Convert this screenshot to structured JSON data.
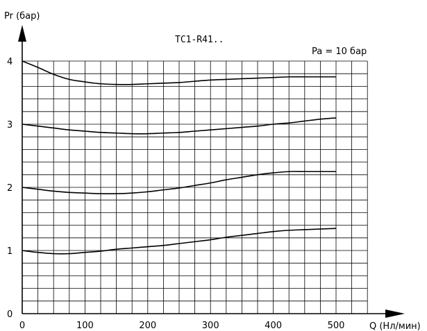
{
  "chart_data": {
    "type": "line",
    "title": "TC1-R41..",
    "annotation": "Pa = 10 бар",
    "xlabel": "Q (Нл/мин)",
    "ylabel": "Pr (бар)",
    "xlim": [
      0,
      500
    ],
    "ylim": [
      0,
      4
    ],
    "x_ticks": [
      0,
      100,
      200,
      300,
      400,
      500
    ],
    "y_ticks": [
      0,
      1,
      2,
      3,
      4
    ],
    "x_tick_labels": [
      "0",
      "100",
      "200",
      "300",
      "400",
      "500"
    ],
    "y_tick_labels": [
      "0",
      "1",
      "2",
      "3",
      "4"
    ],
    "grid": true,
    "x_grid_step": 25,
    "y_grid_step": 0.2,
    "x_grid_max": 550,
    "y_grid_max": 4.0,
    "series": [
      {
        "x": [
          0,
          25,
          50,
          75,
          100,
          125,
          150,
          175,
          200,
          225,
          250,
          275,
          300,
          325,
          350,
          375,
          400,
          425,
          450,
          475,
          500
        ],
        "values": [
          4.0,
          3.9,
          3.79,
          3.71,
          3.67,
          3.64,
          3.63,
          3.63,
          3.64,
          3.65,
          3.66,
          3.68,
          3.7,
          3.71,
          3.72,
          3.73,
          3.74,
          3.75,
          3.75,
          3.75,
          3.75
        ]
      },
      {
        "x": [
          0,
          25,
          50,
          75,
          100,
          125,
          150,
          175,
          200,
          225,
          250,
          275,
          300,
          325,
          350,
          375,
          400,
          425,
          450,
          475,
          500
        ],
        "values": [
          3.0,
          2.97,
          2.94,
          2.91,
          2.89,
          2.87,
          2.86,
          2.85,
          2.85,
          2.86,
          2.87,
          2.89,
          2.91,
          2.93,
          2.95,
          2.97,
          3.0,
          3.02,
          3.05,
          3.08,
          3.1
        ]
      },
      {
        "x": [
          0,
          25,
          50,
          75,
          100,
          125,
          150,
          175,
          200,
          225,
          250,
          275,
          300,
          325,
          350,
          375,
          400,
          425,
          450,
          475,
          500
        ],
        "values": [
          2.0,
          1.97,
          1.94,
          1.92,
          1.91,
          1.9,
          1.9,
          1.91,
          1.93,
          1.96,
          1.99,
          2.03,
          2.07,
          2.12,
          2.16,
          2.2,
          2.23,
          2.25,
          2.25,
          2.25,
          2.25
        ]
      },
      {
        "x": [
          0,
          25,
          50,
          75,
          100,
          125,
          150,
          175,
          200,
          225,
          250,
          275,
          300,
          325,
          350,
          375,
          400,
          425,
          450,
          475,
          500
        ],
        "values": [
          1.0,
          0.97,
          0.95,
          0.95,
          0.97,
          0.99,
          1.02,
          1.04,
          1.06,
          1.08,
          1.11,
          1.14,
          1.17,
          1.21,
          1.24,
          1.27,
          1.3,
          1.32,
          1.33,
          1.34,
          1.35
        ]
      }
    ]
  }
}
